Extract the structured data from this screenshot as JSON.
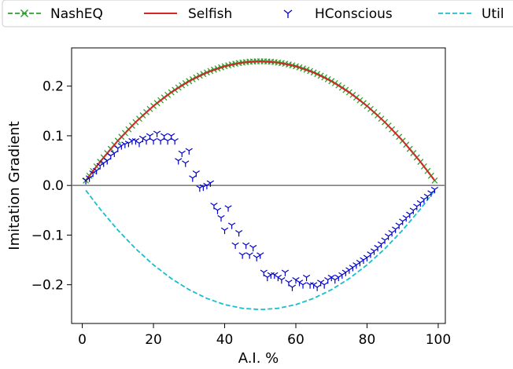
{
  "chart_data": {
    "type": "line",
    "xlabel": "A.I. %",
    "ylabel": "Imitation Gradient",
    "xlim": [
      -3,
      102
    ],
    "ylim": [
      -0.278,
      0.277
    ],
    "xticks": [
      0,
      20,
      40,
      60,
      80,
      100
    ],
    "xtick_labels": [
      "0",
      "20",
      "40",
      "60",
      "80",
      "100"
    ],
    "yticks": [
      -0.2,
      -0.1,
      0.0,
      0.1,
      0.2
    ],
    "ytick_labels": [
      "−0.2",
      "−0.1",
      "0.0",
      "0.1",
      "0.2"
    ],
    "grid": false,
    "legend_position": "top, outside plot, single row",
    "zero_line": {
      "y": 0,
      "color": "#808080"
    },
    "series": [
      {
        "name": "NashEQ",
        "style": "dashed line with x markers",
        "color": "#2ca02c",
        "x": [
          1,
          2,
          3,
          4,
          5,
          6,
          7,
          8,
          9,
          10,
          11,
          12,
          13,
          14,
          15,
          16,
          17,
          18,
          19,
          20,
          21,
          22,
          23,
          24,
          25,
          26,
          27,
          28,
          29,
          30,
          31,
          32,
          33,
          34,
          35,
          36,
          37,
          38,
          39,
          40,
          41,
          42,
          43,
          44,
          45,
          46,
          47,
          48,
          49,
          50,
          51,
          52,
          53,
          54,
          55,
          56,
          57,
          58,
          59,
          60,
          61,
          62,
          63,
          64,
          65,
          66,
          67,
          68,
          69,
          70,
          71,
          72,
          73,
          74,
          75,
          76,
          77,
          78,
          79,
          80,
          81,
          82,
          83,
          84,
          85,
          86,
          87,
          88,
          89,
          90,
          91,
          92,
          93,
          94,
          95,
          96,
          97,
          98,
          99
        ],
        "y": [
          0.0099,
          0.0196,
          0.0291,
          0.0384,
          0.0475,
          0.0564,
          0.0651,
          0.0736,
          0.0819,
          0.09,
          0.0979,
          0.1056,
          0.1131,
          0.1204,
          0.1275,
          0.1344,
          0.1411,
          0.1476,
          0.1539,
          0.16,
          0.1659,
          0.1716,
          0.1771,
          0.1824,
          0.1875,
          0.1924,
          0.1971,
          0.2016,
          0.2059,
          0.21,
          0.2139,
          0.2176,
          0.2211,
          0.2244,
          0.2275,
          0.2304,
          0.2331,
          0.2356,
          0.2379,
          0.24,
          0.2419,
          0.2436,
          0.2451,
          0.2464,
          0.2475,
          0.2484,
          0.2491,
          0.2496,
          0.2499,
          0.25,
          0.2499,
          0.2496,
          0.2491,
          0.2484,
          0.2475,
          0.2464,
          0.2451,
          0.2436,
          0.2419,
          0.24,
          0.2379,
          0.2356,
          0.2331,
          0.2304,
          0.2275,
          0.2244,
          0.2211,
          0.2176,
          0.2139,
          0.21,
          0.2059,
          0.2016,
          0.1971,
          0.1924,
          0.1875,
          0.1824,
          0.1771,
          0.1716,
          0.1659,
          0.16,
          0.1539,
          0.1476,
          0.1411,
          0.1344,
          0.1275,
          0.1204,
          0.1131,
          0.1056,
          0.0979,
          0.09,
          0.0819,
          0.0736,
          0.0651,
          0.0564,
          0.0475,
          0.0384,
          0.0291,
          0.0196,
          0.0099
        ]
      },
      {
        "name": "Selfish",
        "style": "solid line",
        "color": "#d62728",
        "x": [
          1,
          5,
          10,
          15,
          20,
          25,
          30,
          35,
          40,
          45,
          50,
          55,
          60,
          65,
          70,
          75,
          80,
          85,
          90,
          95,
          99
        ],
        "y": [
          0.0099,
          0.0475,
          0.09,
          0.1275,
          0.16,
          0.1875,
          0.21,
          0.2275,
          0.24,
          0.2475,
          0.25,
          0.2475,
          0.24,
          0.2275,
          0.21,
          0.1875,
          0.16,
          0.1275,
          0.09,
          0.0475,
          0.0099
        ]
      },
      {
        "name": "HConscious",
        "style": "tri-down markers",
        "color": "#0000cc",
        "x": [
          1,
          2,
          3,
          4,
          5,
          6,
          7,
          8,
          9,
          10,
          11,
          12,
          13,
          14,
          15,
          16,
          17,
          18,
          19,
          20,
          21,
          22,
          23,
          24,
          25,
          26,
          27,
          28,
          29,
          30,
          31,
          32,
          33,
          34,
          35,
          36,
          37,
          38,
          39,
          40,
          41,
          42,
          43,
          44,
          45,
          46,
          47,
          48,
          49,
          50,
          51,
          52,
          53,
          54,
          55,
          56,
          57,
          58,
          59,
          60,
          61,
          62,
          63,
          64,
          65,
          66,
          67,
          68,
          69,
          70,
          71,
          72,
          73,
          74,
          75,
          76,
          77,
          78,
          79,
          80,
          81,
          82,
          83,
          84,
          85,
          86,
          87,
          88,
          89,
          90,
          91,
          92,
          93,
          94,
          95,
          96,
          97,
          98,
          99
        ],
        "y": [
          0.01,
          0.015,
          0.025,
          0.03,
          0.04,
          0.045,
          0.05,
          0.06,
          0.065,
          0.075,
          0.08,
          0.083,
          0.085,
          0.09,
          0.09,
          0.085,
          0.095,
          0.09,
          0.1,
          0.09,
          0.105,
          0.09,
          0.1,
          0.09,
          0.1,
          0.09,
          0.05,
          0.065,
          0.045,
          0.07,
          0.015,
          0.025,
          -0.005,
          -0.003,
          0.0,
          0.005,
          -0.04,
          -0.05,
          -0.065,
          -0.09,
          -0.045,
          -0.08,
          -0.12,
          -0.095,
          -0.14,
          -0.12,
          -0.14,
          -0.125,
          -0.145,
          -0.14,
          -0.175,
          -0.185,
          -0.18,
          -0.18,
          -0.185,
          -0.19,
          -0.175,
          -0.195,
          -0.205,
          -0.19,
          -0.195,
          -0.2,
          -0.185,
          -0.2,
          -0.2,
          -0.205,
          -0.195,
          -0.2,
          -0.19,
          -0.185,
          -0.19,
          -0.185,
          -0.18,
          -0.175,
          -0.17,
          -0.165,
          -0.16,
          -0.155,
          -0.15,
          -0.145,
          -0.138,
          -0.132,
          -0.125,
          -0.118,
          -0.11,
          -0.102,
          -0.095,
          -0.088,
          -0.08,
          -0.072,
          -0.065,
          -0.058,
          -0.05,
          -0.042,
          -0.035,
          -0.028,
          -0.022,
          -0.015,
          -0.008
        ]
      },
      {
        "name": "Util",
        "style": "dashed line",
        "color": "#17becf",
        "x": [
          1,
          5,
          10,
          15,
          20,
          25,
          30,
          35,
          40,
          45,
          50,
          55,
          60,
          65,
          70,
          75,
          80,
          85,
          90,
          95,
          99
        ],
        "y": [
          -0.0099,
          -0.0475,
          -0.09,
          -0.1275,
          -0.16,
          -0.1875,
          -0.21,
          -0.2275,
          -0.24,
          -0.2475,
          -0.25,
          -0.2475,
          -0.24,
          -0.2275,
          -0.21,
          -0.1875,
          -0.16,
          -0.1275,
          -0.09,
          -0.0475,
          -0.0099
        ]
      }
    ]
  }
}
